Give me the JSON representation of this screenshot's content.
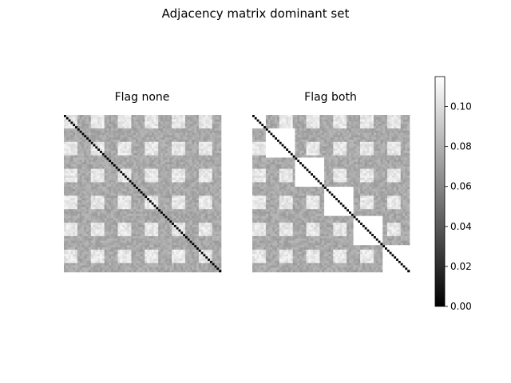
{
  "chart_data": {
    "type": "heatmap",
    "title": "Adjacency matrix dominant set",
    "colormap": "gray",
    "panels": [
      {
        "title": "Flag none",
        "matrix_size": 70,
        "diagonal_value": 0.0,
        "column_pattern": [
          "high",
          "high",
          "high",
          "high",
          "high",
          "high",
          "mid",
          "mid",
          "mid",
          "mid",
          "mid",
          "mid",
          "high",
          "high",
          "high",
          "high",
          "high",
          "high",
          "mid",
          "mid",
          "mid",
          "mid",
          "mid",
          "mid",
          "high",
          "high",
          "high",
          "high",
          "high",
          "high",
          "mid",
          "mid",
          "mid",
          "mid",
          "mid",
          "mid",
          "high",
          "high",
          "high",
          "high",
          "high",
          "high",
          "mid",
          "mid",
          "mid",
          "mid",
          "mid",
          "mid",
          "high",
          "high",
          "high",
          "high",
          "high",
          "high",
          "mid",
          "mid",
          "mid",
          "mid",
          "mid",
          "mid",
          "high",
          "high",
          "high",
          "high",
          "high",
          "high",
          "mid",
          "mid",
          "mid",
          "mid"
        ],
        "blocks": []
      },
      {
        "title": "Flag both",
        "matrix_size": 70,
        "diagonal_value": 0.0,
        "block_diagonal_value": 0.115,
        "blocks": [
          [
            0,
            6
          ],
          [
            6,
            19
          ],
          [
            19,
            32
          ],
          [
            32,
            45
          ],
          [
            45,
            58
          ],
          [
            58,
            70
          ]
        ]
      }
    ],
    "colorbar": {
      "range": [
        0,
        0.115
      ],
      "ticks": [
        "0.00",
        "0.02",
        "0.04",
        "0.06",
        "0.08",
        "0.10"
      ],
      "tick_values": [
        0.0,
        0.02,
        0.04,
        0.06,
        0.08,
        0.1
      ]
    }
  }
}
